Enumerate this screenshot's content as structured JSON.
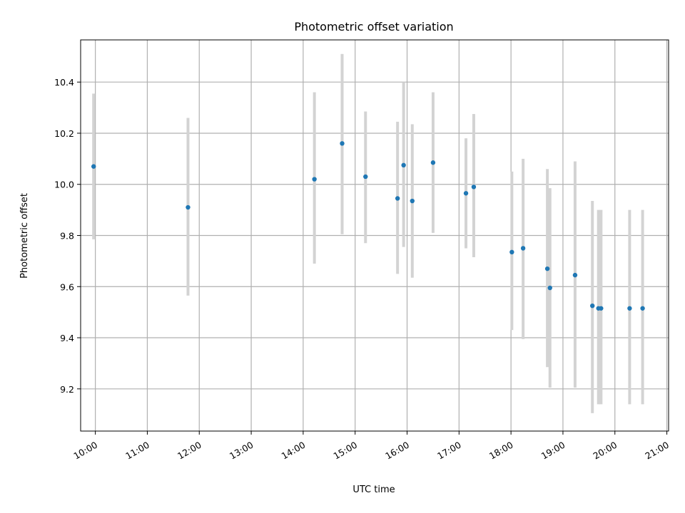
{
  "chart_data": {
    "type": "scatter",
    "title": "Photometric offset variation",
    "xlabel": "UTC time",
    "ylabel": "Photometric offset",
    "xlim": [
      "09:43",
      "21:02"
    ],
    "ylim": [
      9.035,
      10.565
    ],
    "grid": true,
    "x_ticks": [
      "10:00",
      "11:00",
      "12:00",
      "13:00",
      "14:00",
      "15:00",
      "16:00",
      "17:00",
      "18:00",
      "19:00",
      "20:00",
      "21:00"
    ],
    "y_ticks": [
      9.2,
      9.4,
      9.6,
      9.8,
      10.0,
      10.2,
      10.4
    ],
    "colors": {
      "point": "#1f77b4",
      "errorbar": "#d3d3d3",
      "grid": "#b0b0b0"
    },
    "points": [
      {
        "x": "09:58",
        "y": 10.07,
        "err_low": 9.785,
        "err_high": 10.355
      },
      {
        "x": "11:47",
        "y": 9.91,
        "err_low": 9.565,
        "err_high": 10.26
      },
      {
        "x": "14:13",
        "y": 10.02,
        "err_low": 9.69,
        "err_high": 10.36
      },
      {
        "x": "14:45",
        "y": 10.16,
        "err_low": 9.805,
        "err_high": 10.51
      },
      {
        "x": "15:12",
        "y": 10.03,
        "err_low": 9.77,
        "err_high": 10.285
      },
      {
        "x": "15:49",
        "y": 9.945,
        "err_low": 9.65,
        "err_high": 10.245
      },
      {
        "x": "15:56",
        "y": 10.075,
        "err_low": 9.755,
        "err_high": 10.4
      },
      {
        "x": "16:06",
        "y": 9.935,
        "err_low": 9.635,
        "err_high": 10.235
      },
      {
        "x": "16:30",
        "y": 10.085,
        "err_low": 9.81,
        "err_high": 10.36
      },
      {
        "x": "17:08",
        "y": 9.965,
        "err_low": 9.75,
        "err_high": 10.18
      },
      {
        "x": "17:17",
        "y": 9.99,
        "err_low": 9.715,
        "err_high": 10.275
      },
      {
        "x": "18:01",
        "y": 9.735,
        "err_low": 9.43,
        "err_high": 10.05
      },
      {
        "x": "18:14",
        "y": 9.75,
        "err_low": 9.395,
        "err_high": 10.1
      },
      {
        "x": "18:42",
        "y": 9.67,
        "err_low": 9.285,
        "err_high": 10.06
      },
      {
        "x": "18:45",
        "y": 9.595,
        "err_low": 9.205,
        "err_high": 9.985
      },
      {
        "x": "19:14",
        "y": 9.645,
        "err_low": 9.205,
        "err_high": 10.09
      },
      {
        "x": "19:34",
        "y": 9.525,
        "err_low": 9.105,
        "err_high": 9.935
      },
      {
        "x": "19:41",
        "y": 9.515,
        "err_low": 9.14,
        "err_high": 9.9
      },
      {
        "x": "19:44",
        "y": 9.515,
        "err_low": 9.14,
        "err_high": 9.9
      },
      {
        "x": "20:17",
        "y": 9.515,
        "err_low": 9.14,
        "err_high": 9.9
      },
      {
        "x": "20:32",
        "y": 9.515,
        "err_low": 9.14,
        "err_high": 9.9
      }
    ]
  }
}
